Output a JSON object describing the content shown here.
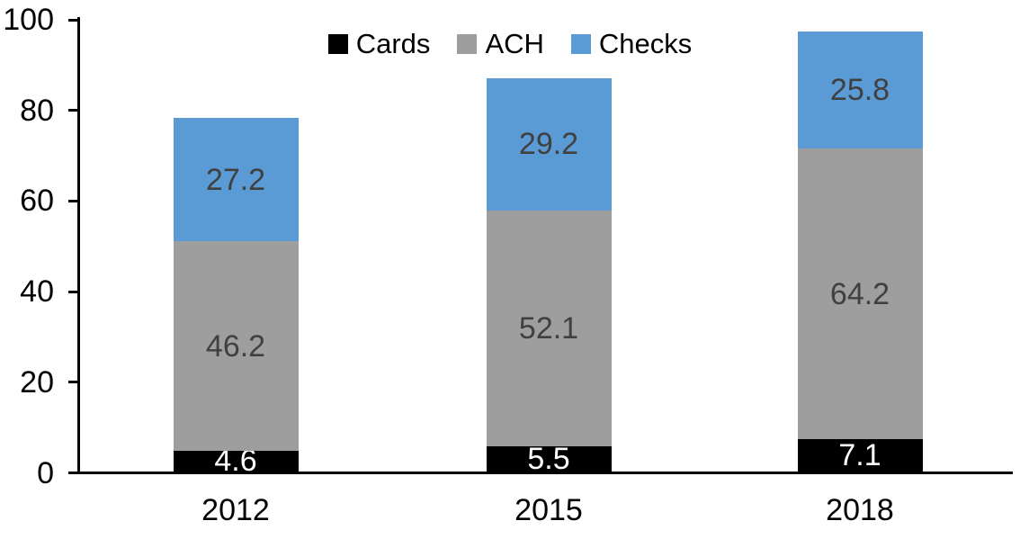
{
  "chart_data": {
    "type": "bar",
    "stacked": true,
    "title": "",
    "xlabel": "",
    "ylabel": "",
    "categories": [
      "2012",
      "2015",
      "2018"
    ],
    "series": [
      {
        "name": "Cards",
        "color": "#000000",
        "label_color": "#FFFFFF",
        "values": [
          4.6,
          5.5,
          7.1
        ]
      },
      {
        "name": "ACH",
        "color": "#9E9E9E",
        "label_color": "#404040",
        "values": [
          46.2,
          52.1,
          64.2
        ]
      },
      {
        "name": "Checks",
        "color": "#5B9BD5",
        "label_color": "#404040",
        "values": [
          27.2,
          29.2,
          25.8
        ]
      }
    ],
    "stack_totals": [
      78.0,
      86.8,
      97.1
    ],
    "ylim": [
      0,
      100
    ],
    "yticks": [
      0,
      20,
      40,
      60,
      80,
      100
    ],
    "grid": false,
    "data_labels": true,
    "legend_position": "top",
    "axis_color": "#000000",
    "background_color": "#FFFFFF"
  }
}
